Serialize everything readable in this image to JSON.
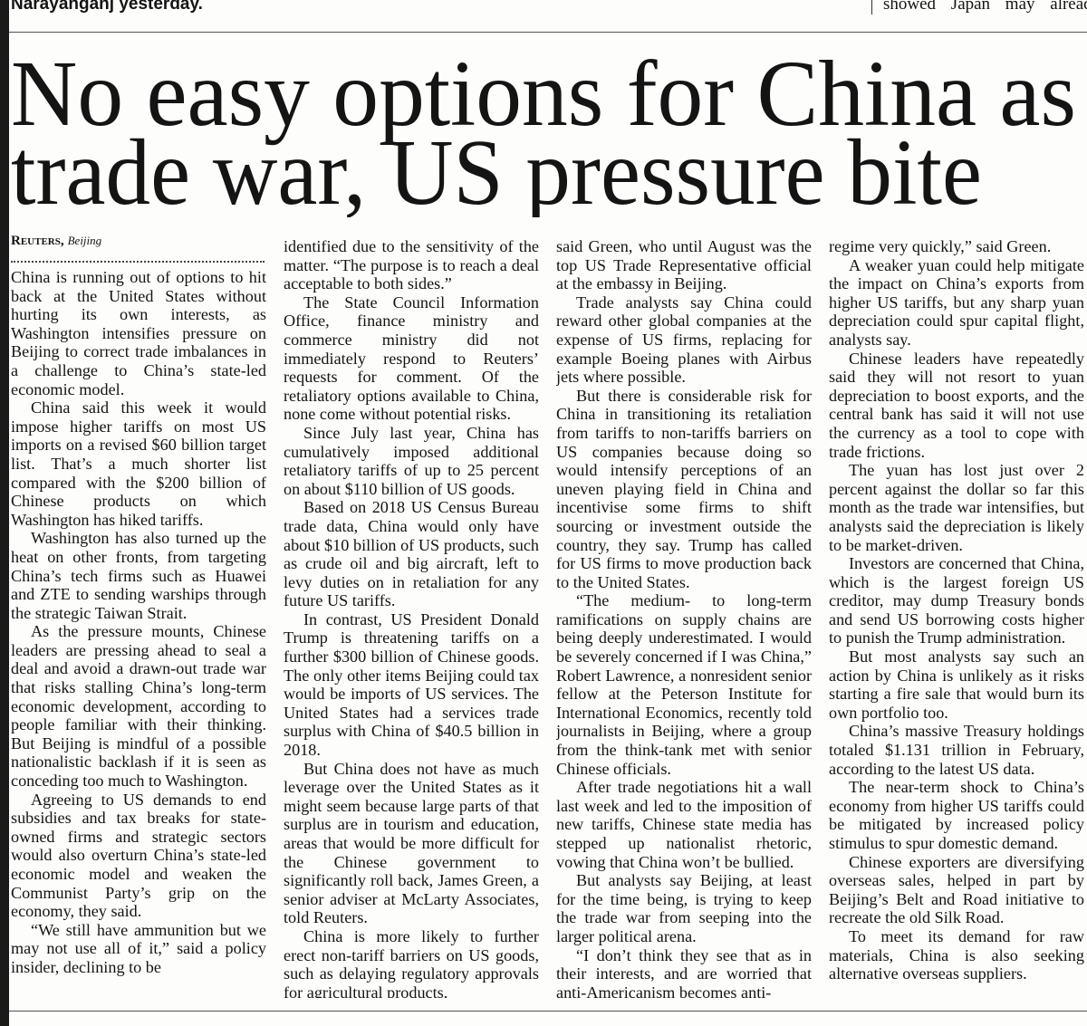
{
  "top_strip": {
    "left": "Narayanganj yesterday.",
    "right": "showed Japan may alread"
  },
  "headline": [
    "No easy options for China as",
    "trade war, US pressure bite"
  ],
  "byline": {
    "agency": "Reuters,",
    "location": "Beijing"
  },
  "columns": [
    {
      "paragraphs": [
        "China is running out of options to hit back at the United States without hurting its own interests, as Washington intensifies pressure on Beijing to correct trade imbalances in a challenge to China’s state-led economic model.",
        "China said this week it would impose higher tariffs on most US imports on a revised $60 billion target list. That’s a much shorter list compared with the $200 billion of Chinese products on which Washington has hiked tariffs.",
        "Washington has also turned up the heat on other fronts, from targeting China’s tech firms such as Huawei and ZTE to sending warships through the strategic Taiwan Strait.",
        "As the pressure mounts, Chinese leaders are pressing ahead to seal a deal and avoid a drawn-out trade war that risks stalling China’s long-term economic development, according to people familiar with their thinking. But Beijing is mindful of a possible nationalistic backlash if it is seen as conceding too much to Washington.",
        "Agreeing to US demands to end subsidies and tax breaks for state-owned firms and strategic sectors would also overturn China’s state-led economic model and weaken the Communist Party’s grip on the economy, they said.",
        "“We still have ammunition but we may not use all of it,” said a policy insider, declining to be"
      ]
    },
    {
      "paragraphs": [
        "identified due to the sensitivity of the matter. “The purpose is to reach a deal acceptable to both sides.”",
        "The State Council Information Office, finance ministry and commerce ministry did not immediately respond to Reuters’ requests for comment. Of the retaliatory options available to China, none come without potential risks.",
        "Since July last year, China has cumulatively imposed additional retaliatory tariffs of up to 25 percent on about $110 billion of US goods.",
        "Based on 2018 US Census Bureau trade data, China would only have about $10 billion of US products, such as crude oil and big aircraft, left to levy duties on in retaliation for any future US tariffs.",
        "In contrast, US President Donald Trump is threatening tariffs on a further $300 billion of Chinese goods. The only other items Beijing could tax would be imports of US services. The United States had a services trade surplus with China of $40.5 billion in 2018.",
        "But China does not have as much leverage over the United States as it might seem because large parts of that surplus are in tourism and education, areas that would be more difficult for the Chinese government to significantly roll back, James Green, a senior adviser at McLarty Associates, told Reuters.",
        "China is more likely to further erect non-tariff barriers on US goods, such as delaying regulatory approvals for agricultural products,"
      ]
    },
    {
      "paragraphs": [
        "said Green, who until August was the top US Trade Representative official at the embassy in Beijing.",
        "Trade analysts say China could reward other global companies at the expense of US firms, replacing for example Boeing planes with Airbus jets where possible.",
        "But there is considerable risk for China in transitioning its retaliation from tariffs to non-tariffs barriers on US companies because doing so would intensify perceptions of an uneven playing field in China and incentivise some firms to shift sourcing or investment outside the country, they say. Trump has called for US firms to move production back to the United States.",
        "“The medium- to long-term ramifications on supply chains are being deeply underestimated. I would be severely concerned if I was China,” Robert Lawrence, a nonresident senior fellow at the Peterson Institute for International Economics, recently told journalists in Beijing, where a group from the think-tank met with senior Chinese officials.",
        "After trade negotiations hit a wall last week and led to the imposition of new tariffs, Chinese state media has stepped up nationalist rhetoric, vowing that China won’t be bullied.",
        "But analysts say Beijing, at least for the time being, is trying to keep the trade war from seeping into the larger political arena.",
        "“I don’t think they see that as in their interests, and are worried that anti-Americanism becomes anti-"
      ]
    },
    {
      "paragraphs": [
        "regime very quickly,” said Green.",
        "A weaker yuan could help mitigate the impact on China’s exports from higher US tariffs, but any sharp yuan depreciation could spur capital flight, analysts say.",
        "Chinese leaders have repeatedly said they will not resort to yuan depreciation to boost exports, and the central bank has said it will not use the currency as a tool to cope with trade frictions.",
        "The yuan has lost just over 2 percent against the dollar so far this month as the trade war intensifies, but analysts said the depreciation is likely to be market-driven.",
        "Investors are concerned that China, which is the largest foreign US creditor, may dump Treasury bonds and send US borrowing costs higher to punish the Trump administration.",
        "But most analysts say such an action by China is unlikely as it risks starting a fire sale that would burn its own portfolio too.",
        "China’s massive Treasury holdings totaled $1.131 trillion in February, according to the latest US data.",
        "The near-term shock to China’s economy from higher US tariffs could be mitigated by increased policy stimulus to spur domestic demand.",
        "Chinese exporters are diversifying overseas sales, helped in part by Beijing’s Belt and Road initiative to recreate the old Silk Road.",
        "To meet its demand for raw materials, China is also seeking alternative overseas suppliers."
      ]
    }
  ]
}
